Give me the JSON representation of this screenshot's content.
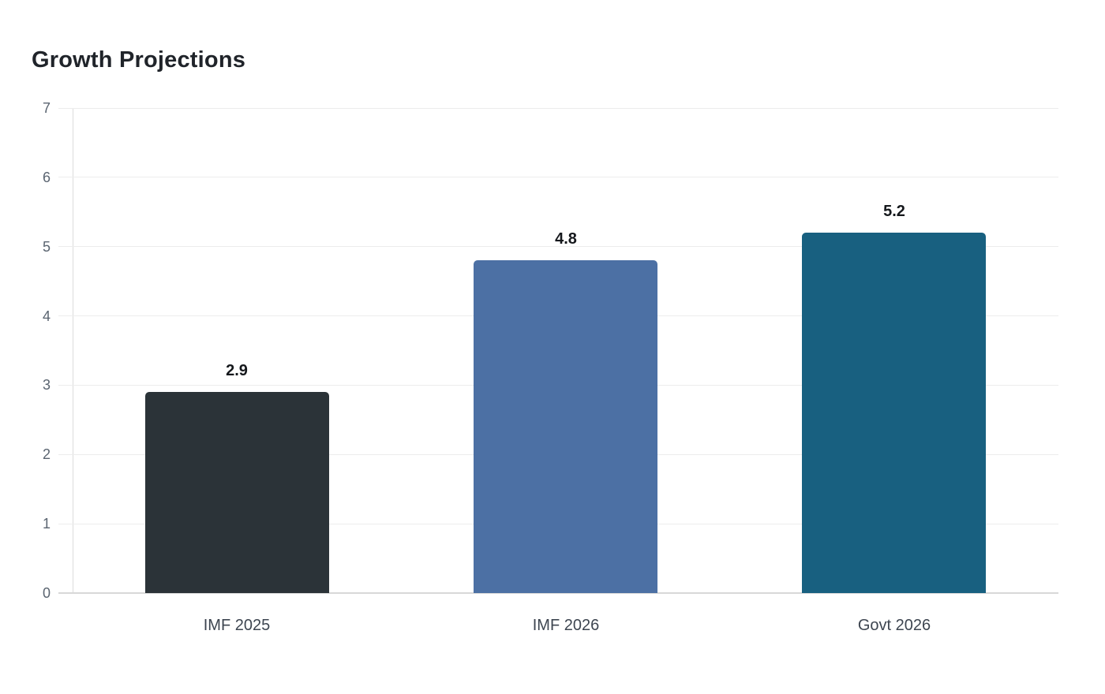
{
  "title": "Growth Projections",
  "chart_data": {
    "type": "bar",
    "title": "Growth Projections",
    "categories": [
      "IMF 2025",
      "IMF 2026",
      "Govt 2026"
    ],
    "values": [
      2.9,
      4.8,
      5.2
    ],
    "value_labels": [
      "2.9",
      "4.8",
      "5.2"
    ],
    "bar_colors": [
      "#2b3338",
      "#4c70a4",
      "#186080"
    ],
    "xlabel": "",
    "ylabel": "",
    "ylim": [
      0,
      7
    ],
    "yticks": [
      0,
      1,
      2,
      3,
      4,
      5,
      6,
      7
    ],
    "grid": true,
    "legend": false,
    "bar_style": "rounded-top"
  },
  "colors": {
    "background": "#ffffff",
    "title_text": "#20242a",
    "grid_line": "#ececec",
    "baseline_line": "#d8d8d8",
    "axis_line": "#dcdcdc",
    "y_tick_text": "#5a6470",
    "x_tick_text": "#3d4550",
    "value_label_text": "#15181c"
  }
}
